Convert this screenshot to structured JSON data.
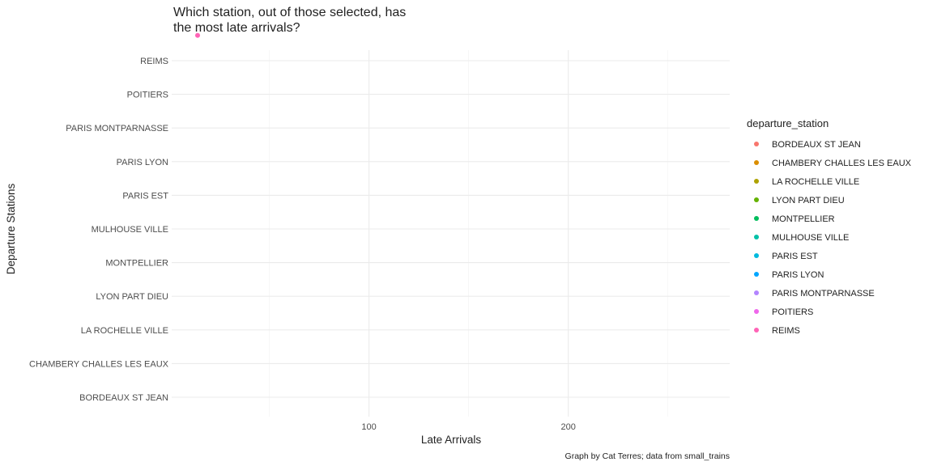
{
  "chart_data": {
    "type": "scatter",
    "title_lines": [
      "Which station, out of those selected, has",
      "the most late arrivals?"
    ],
    "xlabel": "Late Arrivals",
    "ylabel": "Departure Stations",
    "caption": "Graph by Cat Terres; data from small_trains",
    "x_ticks": [
      100,
      200
    ],
    "xlim": [
      1,
      281
    ],
    "categories": [
      "BORDEAUX ST JEAN",
      "CHAMBERY CHALLES LES EAUX",
      "LA ROCHELLE VILLE",
      "LYON PART DIEU",
      "MONTPELLIER",
      "MULHOUSE VILLE",
      "PARIS EST",
      "PARIS LYON",
      "PARIS MONTPARNASSE",
      "POITIERS",
      "REIMS"
    ],
    "grid": true,
    "legend": {
      "title": "departure_station",
      "position": "right",
      "entries": [
        {
          "label": "BORDEAUX ST JEAN",
          "color": "#F8766D"
        },
        {
          "label": "CHAMBERY CHALLES LES EAUX",
          "color": "#DB8E00"
        },
        {
          "label": "LA ROCHELLE VILLE",
          "color": "#AEA200"
        },
        {
          "label": "LYON PART DIEU",
          "color": "#64B200"
        },
        {
          "label": "MONTPELLIER",
          "color": "#00BD5C"
        },
        {
          "label": "MULHOUSE VILLE",
          "color": "#00C1A7"
        },
        {
          "label": "PARIS EST",
          "color": "#00BADE"
        },
        {
          "label": "PARIS LYON",
          "color": "#00A6FF"
        },
        {
          "label": "PARIS MONTPARNASSE",
          "color": "#B385FF"
        },
        {
          "label": "POITIERS",
          "color": "#EF67EB"
        },
        {
          "label": "REIMS",
          "color": "#FF63B6"
        }
      ]
    },
    "points": [
      {
        "station": "REIMS",
        "x": 14,
        "y": 10.75,
        "color": "#FF63B6"
      }
    ]
  }
}
